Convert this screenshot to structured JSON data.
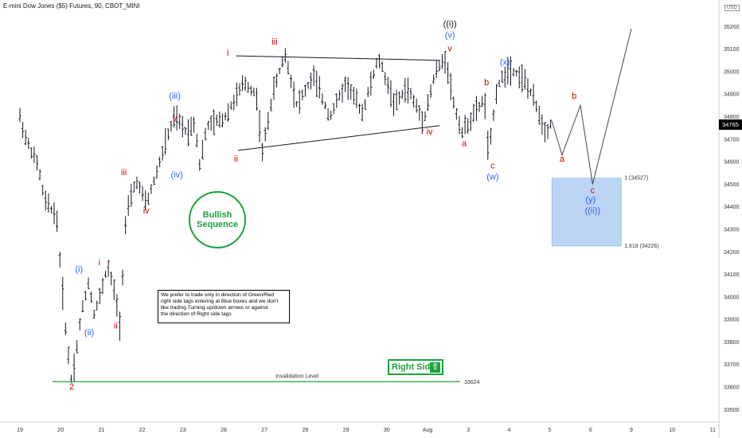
{
  "title": "E-mini Dow Jones ($5) Futures, 90, CBOT_MINI",
  "currency_label": "USD",
  "current_price": "34765",
  "note_lines": [
    "We prefer to trade only in direction of Green/Red",
    "right side tags entering at Blue boxes and we don't",
    "like trading Turning up/down arrows or against",
    "the direction of Right side tags"
  ],
  "bullish_badge": [
    "Bullish",
    "Sequence"
  ],
  "right_side_badge": "Right Side",
  "invalidation_text": "Invalidation Level",
  "invalidation_value": "33624",
  "fib_levels": [
    {
      "label": "1 (34527)",
      "price": 34527
    },
    {
      "label": "1.618 (34226)",
      "price": 34226
    }
  ],
  "colors": {
    "candle": "#131722",
    "wave_red": "#d50000",
    "wave_blue": "#2962ff",
    "green": "#1aa33c",
    "blue_box": "#a7c7f0"
  },
  "chart_data": {
    "type": "line",
    "title": "E-mini Dow Jones ($5) Futures, 90, CBOT_MINI",
    "ylim": [
      33480,
      35300
    ],
    "y_ticks": [
      33500,
      33600,
      33700,
      33800,
      33900,
      34000,
      34100,
      34200,
      34300,
      34400,
      34500,
      34600,
      34700,
      34800,
      34900,
      35000,
      35100,
      35200
    ],
    "x_ticks": [
      "19",
      "20",
      "21",
      "22",
      "23",
      "26",
      "27",
      "28",
      "29",
      "30",
      "Aug",
      "3",
      "4",
      "5",
      "6",
      "9",
      "10",
      "11"
    ],
    "series": [
      {
        "values": [
          [
            0.0,
            34800
          ],
          [
            0.15,
            34700
          ],
          [
            0.45,
            34580
          ],
          [
            0.6,
            34430
          ],
          [
            0.9,
            34360
          ],
          [
            1.0,
            34120
          ],
          [
            1.15,
            33800
          ],
          [
            1.27,
            33624
          ],
          [
            1.4,
            33780
          ],
          [
            1.5,
            33920
          ],
          [
            1.7,
            34080
          ],
          [
            1.8,
            33920
          ],
          [
            1.95,
            33990
          ],
          [
            2.15,
            34140
          ],
          [
            2.35,
            34000
          ],
          [
            2.45,
            33880
          ],
          [
            2.6,
            34350
          ],
          [
            2.85,
            34520
          ],
          [
            3.1,
            34410
          ],
          [
            3.3,
            34520
          ],
          [
            3.6,
            34700
          ],
          [
            3.8,
            34800
          ],
          [
            4.1,
            34730
          ],
          [
            4.3,
            34780
          ],
          [
            4.4,
            34580
          ],
          [
            4.6,
            34760
          ],
          [
            5.0,
            34790
          ],
          [
            5.5,
            34950
          ],
          [
            5.8,
            34900
          ],
          [
            5.95,
            34640
          ],
          [
            6.2,
            34900
          ],
          [
            6.5,
            35080
          ],
          [
            6.8,
            34850
          ],
          [
            7.2,
            34980
          ],
          [
            7.6,
            34800
          ],
          [
            8.0,
            34950
          ],
          [
            8.4,
            34820
          ],
          [
            8.8,
            35060
          ],
          [
            9.2,
            34850
          ],
          [
            9.5,
            34930
          ],
          [
            9.9,
            34780
          ],
          [
            10.2,
            35000
          ],
          [
            10.45,
            35060
          ],
          [
            10.65,
            34850
          ],
          [
            10.85,
            34730
          ],
          [
            11.1,
            34800
          ],
          [
            11.4,
            34880
          ],
          [
            11.5,
            34620
          ],
          [
            11.7,
            34930
          ],
          [
            12.0,
            35020
          ],
          [
            12.35,
            34970
          ],
          [
            12.6,
            34880
          ],
          [
            12.9,
            34730
          ],
          [
            13.05,
            34780
          ]
        ]
      },
      {
        "name": "projection",
        "values": [
          [
            13.05,
            34780
          ],
          [
            13.3,
            34630
          ],
          [
            13.75,
            34850
          ],
          [
            14.05,
            34500
          ],
          [
            15.0,
            35190
          ]
        ]
      }
    ],
    "trendlines": [
      {
        "from": [
          5.3,
          35070
        ],
        "to": [
          10.3,
          35050
        ]
      },
      {
        "from": [
          5.35,
          34650
        ],
        "to": [
          10.3,
          34760
        ]
      }
    ],
    "wave_labels": [
      {
        "text": "2",
        "x": 1.27,
        "y": 33590,
        "color": "red"
      },
      {
        "text": "(i)",
        "x": 1.45,
        "y": 34110,
        "color": "blue"
      },
      {
        "text": "(ii)",
        "x": 1.7,
        "y": 33830,
        "color": "blue"
      },
      {
        "text": "i",
        "x": 1.95,
        "y": 34140,
        "color": "red"
      },
      {
        "text": "ii",
        "x": 2.35,
        "y": 33860,
        "color": "red"
      },
      {
        "text": "iii",
        "x": 2.55,
        "y": 34540,
        "color": "red"
      },
      {
        "text": "iv",
        "x": 3.1,
        "y": 34370,
        "color": "red"
      },
      {
        "text": "(iii)",
        "x": 3.8,
        "y": 34880,
        "color": "blue"
      },
      {
        "text": "v",
        "x": 3.8,
        "y": 34780,
        "color": "red"
      },
      {
        "text": "(iv)",
        "x": 3.85,
        "y": 34530,
        "color": "blue"
      },
      {
        "text": "i",
        "x": 5.1,
        "y": 35070,
        "color": "red"
      },
      {
        "text": "ii",
        "x": 5.3,
        "y": 34600,
        "color": "red"
      },
      {
        "text": "iii",
        "x": 6.25,
        "y": 35120,
        "color": "red"
      },
      {
        "text": "iv",
        "x": 10.05,
        "y": 34720,
        "color": "red"
      },
      {
        "text": "((i))",
        "x": 10.55,
        "y": 35200,
        "color": "dark"
      },
      {
        "text": "(v)",
        "x": 10.55,
        "y": 35150,
        "color": "blue"
      },
      {
        "text": "v",
        "x": 10.55,
        "y": 35090,
        "color": "red"
      },
      {
        "text": "a",
        "x": 10.9,
        "y": 34670,
        "color": "red"
      },
      {
        "text": "b",
        "x": 11.45,
        "y": 34940,
        "color": "red"
      },
      {
        "text": "c",
        "x": 11.6,
        "y": 34570,
        "color": "red"
      },
      {
        "text": "(w)",
        "x": 11.6,
        "y": 34520,
        "color": "blue"
      },
      {
        "text": "(x)",
        "x": 11.9,
        "y": 35030,
        "color": "blue"
      },
      {
        "text": "a",
        "x": 13.3,
        "y": 34600,
        "color": "red"
      },
      {
        "text": "b",
        "x": 13.6,
        "y": 34880,
        "color": "red"
      },
      {
        "text": "c",
        "x": 14.05,
        "y": 34460,
        "color": "red"
      },
      {
        "text": "(y)",
        "x": 14.0,
        "y": 34420,
        "color": "blue"
      },
      {
        "text": "((ii))",
        "x": 14.05,
        "y": 34370,
        "color": "blue"
      }
    ],
    "invalidation_level": 33624,
    "target_box": {
      "x_from": 13.05,
      "x_to": 14.75,
      "y_from": 34226,
      "y_to": 34527
    }
  }
}
